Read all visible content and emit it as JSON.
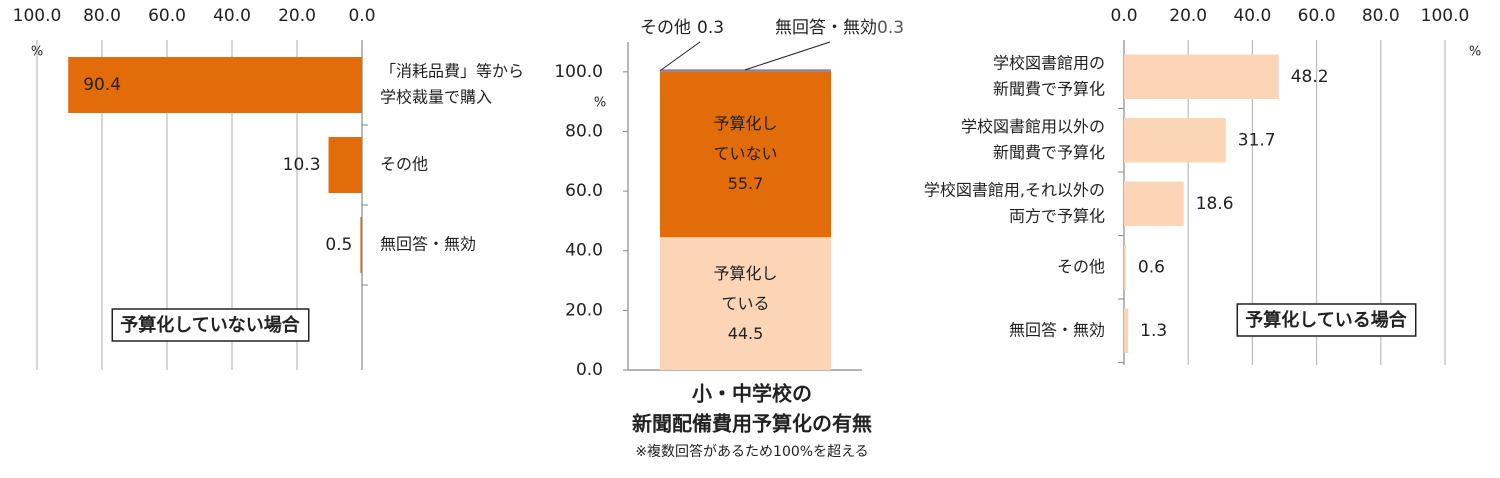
{
  "chart_data": [
    {
      "type": "hbar",
      "label": "予算化していない場合",
      "unit": "%",
      "categories": [
        [
          "「消耗品費」等から",
          "学校裁量で購入"
        ],
        [
          "その他"
        ],
        [
          "無回答・無効"
        ]
      ],
      "values": [
        90.4,
        10.3,
        0.5
      ],
      "color": "#e36c0a",
      "xlim": [
        100,
        0
      ],
      "xticks": [
        {
          "value": 100,
          "label": "100.0"
        },
        {
          "value": 80,
          "label": "80.0"
        },
        {
          "value": 60,
          "label": "60.0"
        },
        {
          "value": 40,
          "label": "40.0"
        },
        {
          "value": 20,
          "label": "20.0"
        },
        {
          "value": 0,
          "label": "0.0"
        }
      ],
      "grid": true
    },
    {
      "type": "stacked_bar",
      "title": [
        "小・中学校の",
        "新聞配備費用予算化の有無"
      ],
      "note": "※複数回答があるため100%を超える",
      "unit": "%",
      "ylim": [
        0,
        110
      ],
      "yticks": [
        {
          "value": 0,
          "label": "0.0"
        },
        {
          "value": 20,
          "label": "20.0"
        },
        {
          "value": 40,
          "label": "40.0"
        },
        {
          "value": 60,
          "label": "60.0"
        },
        {
          "value": 80,
          "label": "80.0"
        },
        {
          "value": 100,
          "label": "100.0"
        }
      ],
      "series": [
        {
          "name": "予算化している",
          "color": "#fbd5b5",
          "values": [
            44.5
          ]
        },
        {
          "name": "予算化していない",
          "color": "#e36c0a",
          "values": [
            55.7
          ]
        },
        {
          "name": "その他",
          "color": "#4f81bd",
          "values": [
            0.3
          ]
        },
        {
          "name": "無回答・無効",
          "color": "#8064a2",
          "values": [
            0.3
          ]
        }
      ]
    },
    {
      "type": "hbar",
      "label": "予算化している場合",
      "unit": "%",
      "categories": [
        [
          "学校図書館用の",
          "新聞費で予算化"
        ],
        [
          "学校図書館用以外の",
          "新聞費で予算化"
        ],
        [
          "学校図書館用,それ以外の",
          "両方で予算化"
        ],
        [
          "その他"
        ],
        [
          "無回答・無効"
        ]
      ],
      "values": [
        48.2,
        31.7,
        18.6,
        0.6,
        1.3
      ],
      "color": "#fbd5b5",
      "xlim": [
        0,
        100
      ],
      "xticks": [
        {
          "value": 0,
          "label": "0.0"
        },
        {
          "value": 20,
          "label": "20.0"
        },
        {
          "value": 40,
          "label": "40.0"
        },
        {
          "value": 60,
          "label": "60.0"
        },
        {
          "value": 80,
          "label": "80.0"
        },
        {
          "value": 100,
          "label": "100.0"
        }
      ],
      "grid": true
    }
  ]
}
